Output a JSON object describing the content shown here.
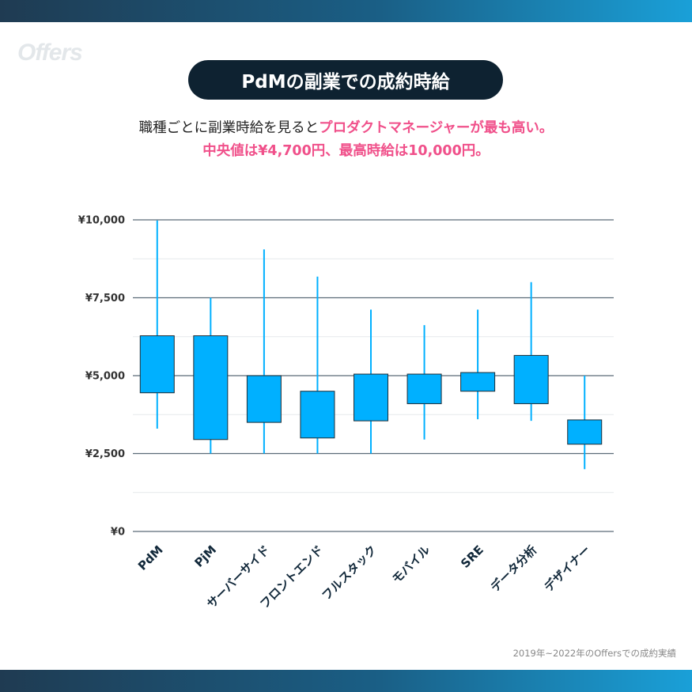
{
  "brand": {
    "logo_text": "Offers"
  },
  "header": {
    "title": "PdMの副業での成約時給",
    "subtitle_line1_plain": "職種ごとに副業時給を見ると",
    "subtitle_line1_highlight": "プロダクトマネージャーが最も高い。",
    "subtitle_line2": "中央値は¥4,700円、最高時給は10,000円。"
  },
  "footnote": "2019年~2022年のOffersでの成約実績",
  "colors": {
    "box": "#00b0ff",
    "whisker": "#00b0ff",
    "accent": "#f0508a",
    "pill": "#0e2231",
    "gridline": "#5b6b77"
  },
  "chart_data": {
    "type": "boxplot",
    "ylim": [
      0,
      10000
    ],
    "y_ticks": [
      {
        "value": 0,
        "label": "¥0"
      },
      {
        "value": 2500,
        "label": "¥2,500"
      },
      {
        "value": 5000,
        "label": "¥5,000"
      },
      {
        "value": 7500,
        "label": "¥7,500"
      },
      {
        "value": 10000,
        "label": "¥10,000"
      }
    ],
    "categories": [
      "PdM",
      "PjM",
      "サーバーサイド",
      "フロントエンド",
      "フルスタック",
      "モバイル",
      "SRE",
      "データ分析",
      "デザイナー"
    ],
    "boxes": [
      {
        "min": 3300,
        "q1": 4450,
        "q3": 6280,
        "max": 9980
      },
      {
        "min": 2500,
        "q1": 2950,
        "q3": 6280,
        "max": 7500
      },
      {
        "min": 2500,
        "q1": 3500,
        "q3": 5000,
        "max": 9050
      },
      {
        "min": 2500,
        "q1": 3000,
        "q3": 4500,
        "max": 8180
      },
      {
        "min": 2500,
        "q1": 3550,
        "q3": 5050,
        "max": 7120
      },
      {
        "min": 2950,
        "q1": 4100,
        "q3": 5050,
        "max": 6620
      },
      {
        "min": 3600,
        "q1": 4500,
        "q3": 5100,
        "max": 7120
      },
      {
        "min": 3550,
        "q1": 4100,
        "q3": 5650,
        "max": 8000
      },
      {
        "min": 2000,
        "q1": 2800,
        "q3": 3580,
        "max": 5000
      }
    ]
  }
}
